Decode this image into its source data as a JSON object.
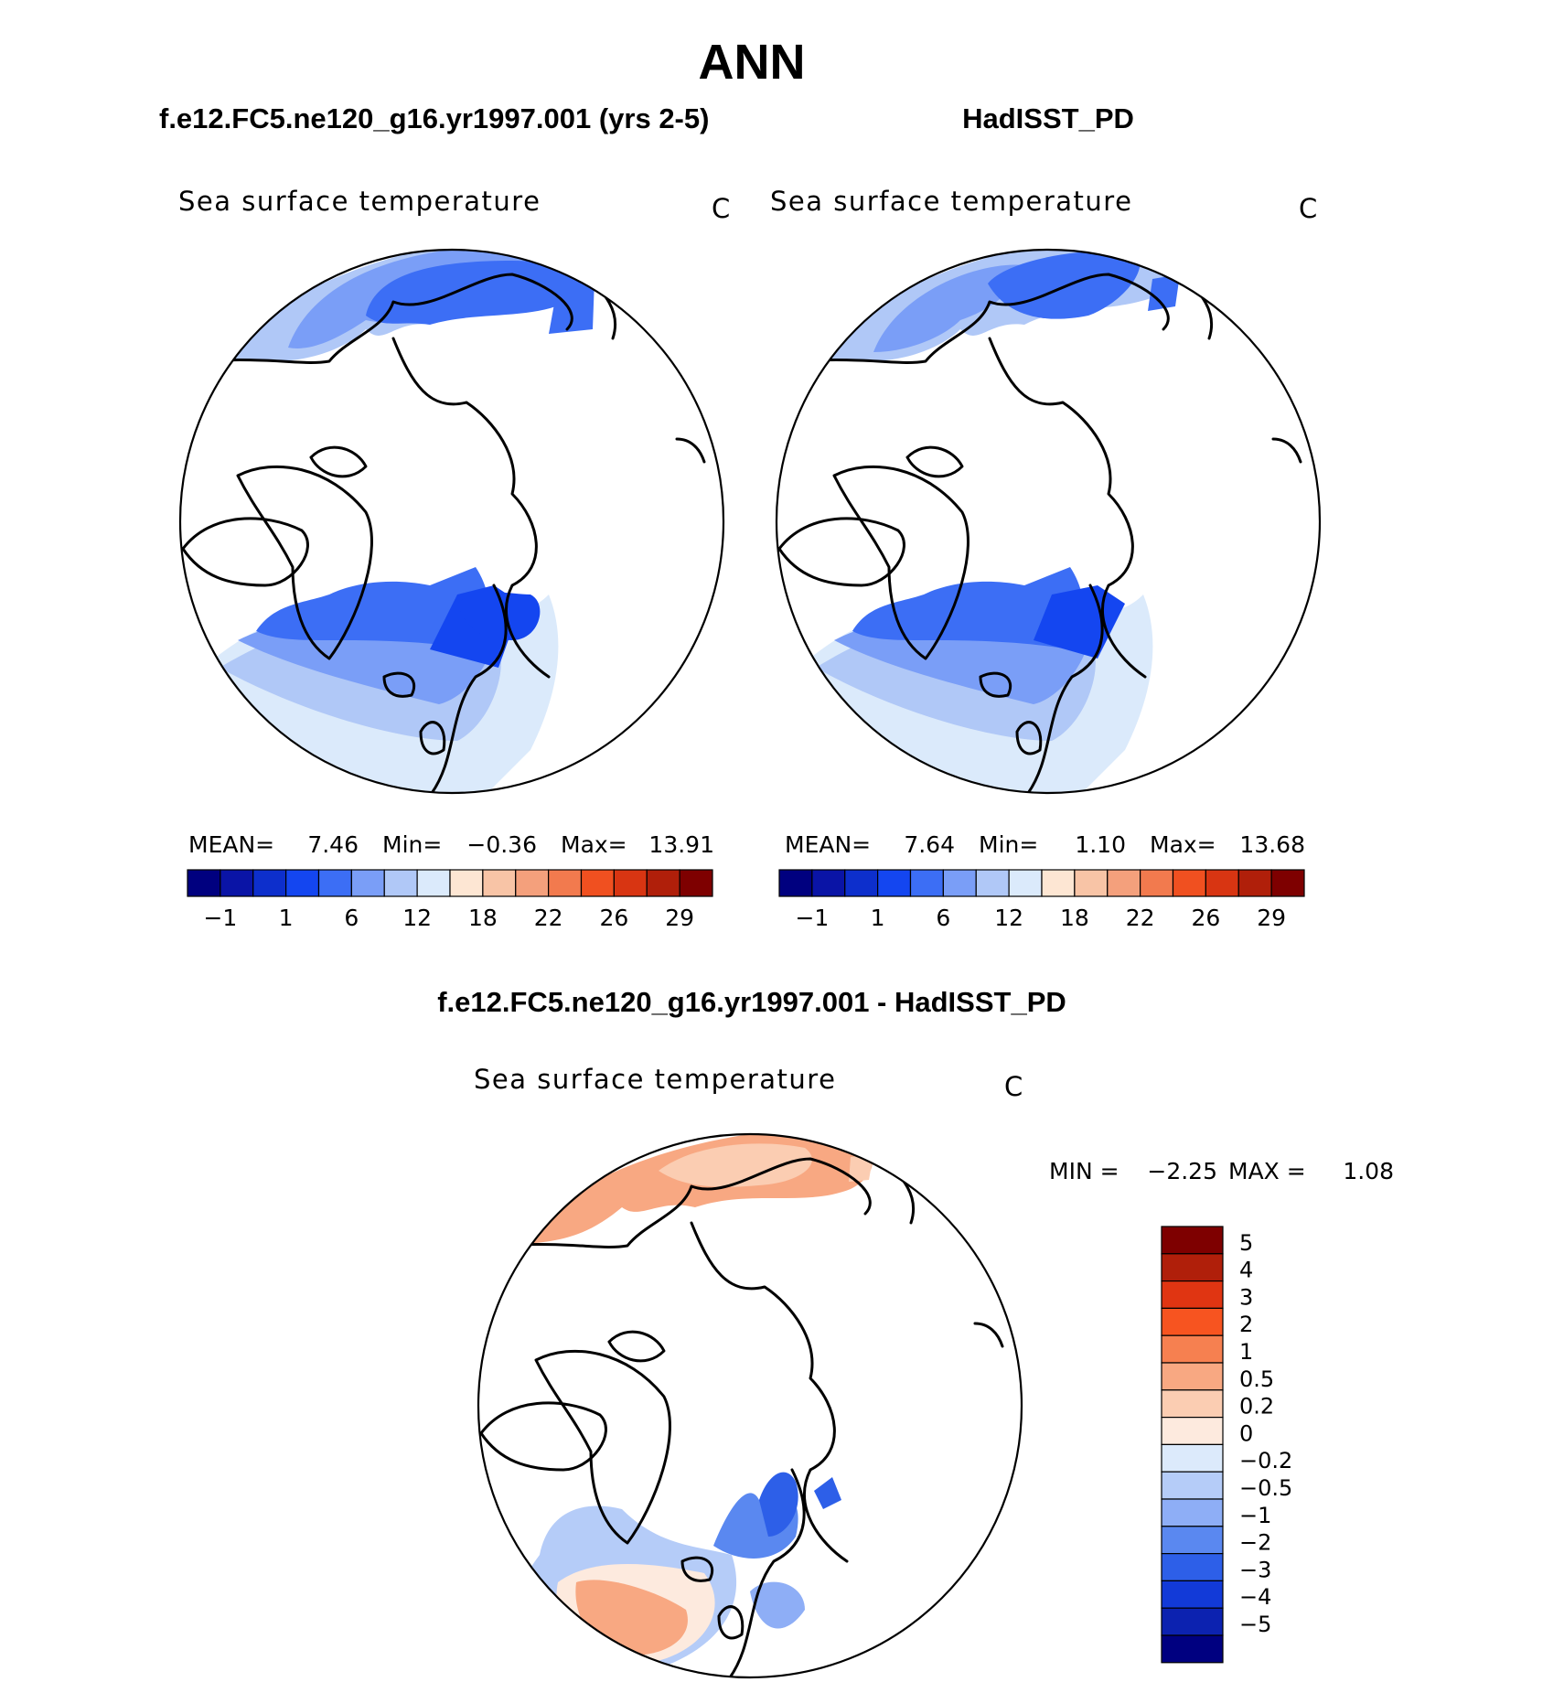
{
  "figure": {
    "main_title": "ANN"
  },
  "panels": [
    {
      "id": "model",
      "case_title": "f.e12.FC5.ne120_g16.yr1997.001 (yrs 2-5)",
      "variable": "Sea surface temperature",
      "units": "C",
      "stats": {
        "mean_label": "MEAN=",
        "mean": "7.46",
        "min_label": "Min=",
        "min": "−0.36",
        "max_label": "Max=",
        "max": "13.91"
      }
    },
    {
      "id": "obs",
      "case_title": "HadISST_PD",
      "variable": "Sea surface temperature",
      "units": "C",
      "stats": {
        "mean_label": "MEAN=",
        "mean": "7.64",
        "min_label": "Min=",
        "min": "1.10",
        "max_label": "Max=",
        "max": "13.68"
      }
    },
    {
      "id": "diff",
      "case_title": "f.e12.FC5.ne120_g16.yr1997.001 - HadISST_PD",
      "variable": "Sea surface temperature",
      "units": "C",
      "stats": {
        "min_label": "MIN =",
        "min": "−2.25",
        "max_label": "MAX =",
        "max": "1.08"
      }
    }
  ],
  "colorbars": {
    "absolute": {
      "colors": [
        "#00007f",
        "#0a14a6",
        "#0d2fcc",
        "#1446f0",
        "#3c6ef5",
        "#7a9ef7",
        "#b0c8f7",
        "#dbeafb",
        "#fde6d3",
        "#f8c4a6",
        "#f4a07c",
        "#f27a4e",
        "#f05020",
        "#d83512",
        "#b01f0a",
        "#7e0000"
      ],
      "labels": [
        "−1",
        "1",
        "6",
        "12",
        "18",
        "22",
        "26",
        "29"
      ]
    },
    "difference": {
      "colors": [
        "#7e0000",
        "#b01f0a",
        "#e03512",
        "#f75420",
        "#f68050",
        "#f8a882",
        "#fbcdb2",
        "#fdeade",
        "#dceafb",
        "#b5ccf8",
        "#8eaef6",
        "#5a88f0",
        "#2d5fe8",
        "#123ad8",
        "#0c22b0",
        "#000080"
      ],
      "labels": [
        "5",
        "4",
        "3",
        "2",
        "1",
        "0.5",
        "0.2",
        "0",
        "−0.2",
        "−0.5",
        "−1",
        "−2",
        "−3",
        "−4",
        "−5"
      ]
    }
  }
}
